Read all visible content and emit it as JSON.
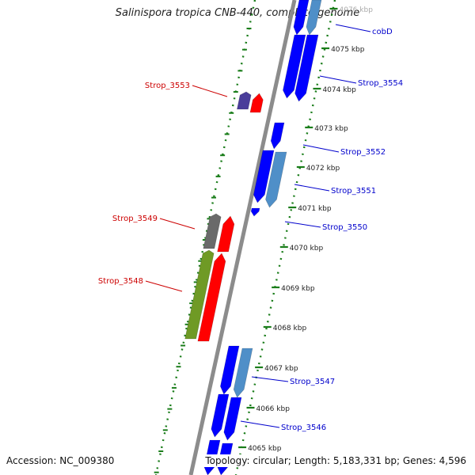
{
  "title": "Salinispora tropica CNB-440, complete genome",
  "accession": "Accession: NC_009380",
  "topology": "Topology: circular; Length: 5,183,331 bp; Genes: 4,596",
  "colors": {
    "backbone": "#8c8c8c",
    "forward_gene": "#0000ff",
    "reverse_gene": "#ff0000",
    "light_blue_gene": "#4f8fc8",
    "green_gene": "#6f9a25",
    "gray_gene": "#6a6a6a",
    "purple_gene": "#4a3d9a",
    "tick_track": "#1a7d1a",
    "forward_label": "#0000cc",
    "reverse_label": "#cc0000"
  },
  "kbp_ticks": [
    "4076 kbp",
    "4075 kbp",
    "4074 kbp",
    "4073 kbp",
    "4072 kbp",
    "4071 kbp",
    "4070 kbp",
    "4069 kbp",
    "4068 kbp",
    "4067 kbp",
    "4066 kbp",
    "4065 kbp"
  ],
  "gene_labels_right": [
    "cobD",
    "Strop_3554",
    "Strop_3552",
    "Strop_3551",
    "Strop_3550",
    "Strop_3547",
    "Strop_3546"
  ],
  "gene_labels_left": [
    "Strop_3553",
    "Strop_3549",
    "Strop_3548"
  ]
}
